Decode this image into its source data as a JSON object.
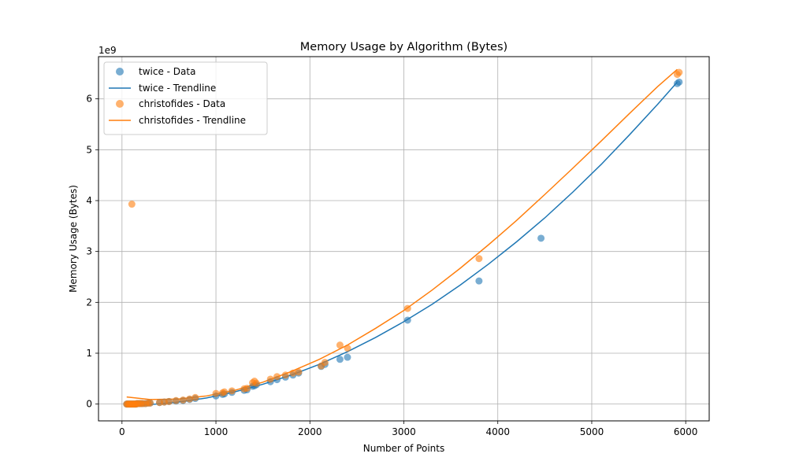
{
  "chart_data": {
    "type": "scatter",
    "title": "Memory Usage by Algorithm (Bytes)",
    "xlabel": "Number of Points",
    "ylabel": "Memory Usage (Bytes)",
    "y_offset_label": "1e9",
    "xlim": [
      -250,
      6250
    ],
    "ylim": [
      -0.33,
      6.83
    ],
    "x_ticks": [
      0,
      1000,
      2000,
      3000,
      4000,
      5000,
      6000
    ],
    "y_ticks": [
      0,
      1,
      2,
      3,
      4,
      5,
      6
    ],
    "x_tick_labels": [
      "0",
      "1000",
      "2000",
      "3000",
      "4000",
      "5000",
      "6000"
    ],
    "y_tick_labels": [
      "0",
      "1",
      "2",
      "3",
      "4",
      "5",
      "6"
    ],
    "grid": true,
    "legend_position": "top-left",
    "series": [
      {
        "name": "twice - Data",
        "kind": "scatter",
        "color": "#1f77b4",
        "x": [
          50,
          60,
          70,
          80,
          90,
          100,
          110,
          120,
          130,
          140,
          150,
          160,
          180,
          200,
          220,
          250,
          280,
          300,
          400,
          450,
          500,
          575,
          650,
          720,
          780,
          1000,
          1070,
          1090,
          1170,
          1300,
          1330,
          1390,
          1410,
          1430,
          1580,
          1650,
          1740,
          1820,
          1880,
          2120,
          2160,
          2320,
          2400,
          3040,
          3800,
          4460,
          5910,
          5930
        ],
        "y": [
          0.0,
          0.0,
          0.0,
          0.0,
          0.0,
          0.0,
          0.0,
          0.0,
          0.0,
          0.0,
          0.0,
          0.01,
          0.01,
          0.01,
          0.01,
          0.01,
          0.02,
          0.02,
          0.03,
          0.04,
          0.05,
          0.06,
          0.07,
          0.09,
          0.11,
          0.16,
          0.19,
          0.2,
          0.23,
          0.27,
          0.28,
          0.35,
          0.36,
          0.38,
          0.44,
          0.48,
          0.53,
          0.57,
          0.61,
          0.74,
          0.78,
          0.88,
          0.92,
          1.65,
          2.42,
          3.26,
          6.3,
          6.33
        ]
      },
      {
        "name": "twice - Trendline",
        "kind": "line",
        "color": "#1f77b4",
        "x": [
          50,
          300,
          600,
          900,
          1200,
          1500,
          1800,
          2100,
          2400,
          2700,
          3000,
          3300,
          3600,
          3900,
          4200,
          4500,
          4800,
          5100,
          5400,
          5700,
          5910
        ],
        "y": [
          -0.04,
          -0.01,
          0.04,
          0.12,
          0.24,
          0.39,
          0.57,
          0.78,
          1.03,
          1.31,
          1.62,
          1.96,
          2.34,
          2.75,
          3.19,
          3.66,
          4.17,
          4.71,
          5.29,
          5.89,
          6.33
        ]
      },
      {
        "name": "christofides - Data",
        "kind": "scatter",
        "color": "#ff7f0e",
        "x": [
          50,
          60,
          70,
          80,
          90,
          100,
          105,
          110,
          120,
          130,
          140,
          150,
          160,
          180,
          200,
          220,
          250,
          280,
          300,
          400,
          450,
          500,
          575,
          650,
          720,
          780,
          1000,
          1070,
          1090,
          1170,
          1300,
          1330,
          1390,
          1410,
          1430,
          1580,
          1650,
          1740,
          1820,
          1880,
          2120,
          2160,
          2320,
          2400,
          3040,
          3800,
          5910,
          5930
        ],
        "y": [
          0.0,
          0.0,
          0.0,
          0.0,
          0.0,
          0.0,
          3.93,
          0.0,
          0.0,
          0.0,
          0.0,
          0.0,
          0.01,
          0.01,
          0.01,
          0.01,
          0.01,
          0.02,
          0.02,
          0.03,
          0.04,
          0.05,
          0.07,
          0.08,
          0.1,
          0.13,
          0.21,
          0.22,
          0.24,
          0.26,
          0.3,
          0.31,
          0.42,
          0.45,
          0.41,
          0.49,
          0.54,
          0.57,
          0.61,
          0.63,
          0.75,
          0.82,
          1.16,
          1.1,
          1.88,
          2.86,
          6.48,
          6.52
        ]
      },
      {
        "name": "christofides - Trendline",
        "kind": "line",
        "color": "#ff7f0e",
        "x": [
          50,
          300,
          600,
          900,
          1200,
          1500,
          1800,
          2100,
          2400,
          2700,
          3000,
          3300,
          3600,
          3900,
          4200,
          4500,
          4800,
          5100,
          5400,
          5700,
          5910
        ],
        "y": [
          0.14,
          0.09,
          0.1,
          0.16,
          0.27,
          0.43,
          0.64,
          0.88,
          1.16,
          1.49,
          1.84,
          2.24,
          2.67,
          3.13,
          3.61,
          4.12,
          4.64,
          5.17,
          5.71,
          6.24,
          6.58
        ]
      }
    ]
  }
}
